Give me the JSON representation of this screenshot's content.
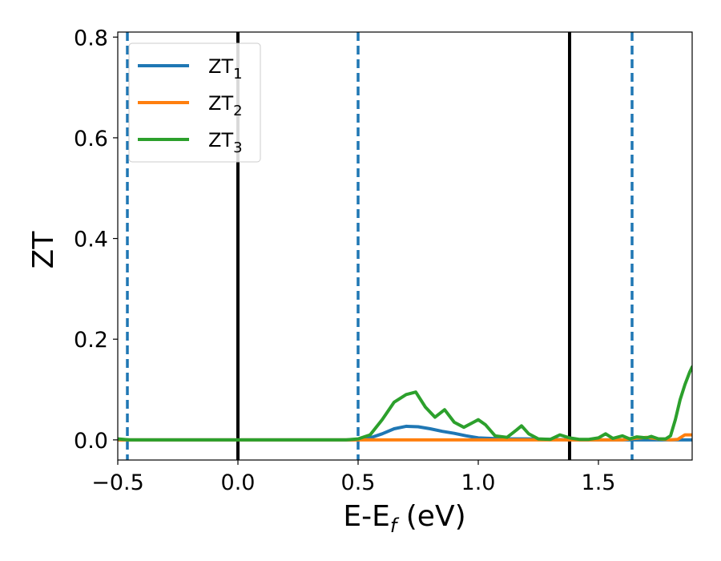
{
  "chart_data": {
    "type": "line",
    "xlabel": {
      "main": "E-E",
      "sub": "f",
      "unit": "(eV)"
    },
    "ylabel": "ZT",
    "xlim": [
      -0.5,
      1.89
    ],
    "ylim": [
      -0.04,
      0.81
    ],
    "xticks": [
      {
        "value": -0.5,
        "label": "−0.5"
      },
      {
        "value": 0.0,
        "label": "0.0"
      },
      {
        "value": 0.5,
        "label": "0.5"
      },
      {
        "value": 1.0,
        "label": "1.0"
      },
      {
        "value": 1.5,
        "label": "1.5"
      }
    ],
    "yticks": [
      {
        "value": 0.0,
        "label": "0.0"
      },
      {
        "value": 0.2,
        "label": "0.2"
      },
      {
        "value": 0.4,
        "label": "0.4"
      },
      {
        "value": 0.6,
        "label": "0.6"
      },
      {
        "value": 0.8,
        "label": "0.8"
      }
    ],
    "legend_position": "top-left",
    "grid": false,
    "vertical_lines": [
      {
        "x": -0.46,
        "style": "dashed",
        "color": "#1f77b4"
      },
      {
        "x": 0.0,
        "style": "solid",
        "color": "#000000"
      },
      {
        "x": 0.5,
        "style": "dashed",
        "color": "#1f77b4"
      },
      {
        "x": 1.38,
        "style": "solid",
        "color": "#000000"
      },
      {
        "x": 1.64,
        "style": "dashed",
        "color": "#1f77b4"
      }
    ],
    "series": [
      {
        "name": "ZT",
        "sub": "1",
        "color": "#1f77b4",
        "x": [
          -0.5,
          0.0,
          0.4,
          0.5,
          0.55,
          0.6,
          0.65,
          0.7,
          0.75,
          0.8,
          0.85,
          0.9,
          0.95,
          1.0,
          1.1,
          1.2,
          1.3,
          1.4,
          1.5,
          1.6,
          1.7,
          1.8,
          1.89
        ],
        "y": [
          0.0,
          0.0,
          0.0,
          0.0,
          0.004,
          0.012,
          0.022,
          0.027,
          0.026,
          0.022,
          0.017,
          0.013,
          0.008,
          0.004,
          0.002,
          0.002,
          0.001,
          0.0,
          0.0,
          0.0,
          0.0,
          0.0,
          0.0
        ]
      },
      {
        "name": "ZT",
        "sub": "2",
        "color": "#ff7f0e",
        "x": [
          -0.5,
          1.6,
          1.65,
          1.7,
          1.75,
          1.8,
          1.83,
          1.86,
          1.89
        ],
        "y": [
          0.0,
          0.0,
          0.003,
          0.005,
          0.002,
          0.0,
          0.001,
          0.01,
          0.01
        ]
      },
      {
        "name": "ZT",
        "sub": "3",
        "color": "#2ca02c",
        "x": [
          -0.5,
          -0.45,
          0.0,
          0.45,
          0.5,
          0.55,
          0.6,
          0.65,
          0.7,
          0.74,
          0.78,
          0.82,
          0.86,
          0.9,
          0.94,
          0.98,
          1.0,
          1.03,
          1.07,
          1.12,
          1.16,
          1.18,
          1.21,
          1.25,
          1.3,
          1.34,
          1.38,
          1.42,
          1.46,
          1.5,
          1.53,
          1.56,
          1.6,
          1.63,
          1.66,
          1.7,
          1.72,
          1.75,
          1.78,
          1.8,
          1.82,
          1.84,
          1.86,
          1.88,
          1.89
        ],
        "y": [
          0.002,
          0.0,
          0.0,
          0.0,
          0.002,
          0.01,
          0.04,
          0.075,
          0.09,
          0.095,
          0.065,
          0.045,
          0.06,
          0.035,
          0.025,
          0.035,
          0.04,
          0.03,
          0.008,
          0.005,
          0.02,
          0.028,
          0.012,
          0.002,
          0.001,
          0.01,
          0.004,
          0.001,
          0.001,
          0.004,
          0.012,
          0.003,
          0.008,
          0.002,
          0.006,
          0.004,
          0.007,
          0.002,
          0.002,
          0.008,
          0.04,
          0.08,
          0.11,
          0.135,
          0.145
        ]
      }
    ]
  }
}
